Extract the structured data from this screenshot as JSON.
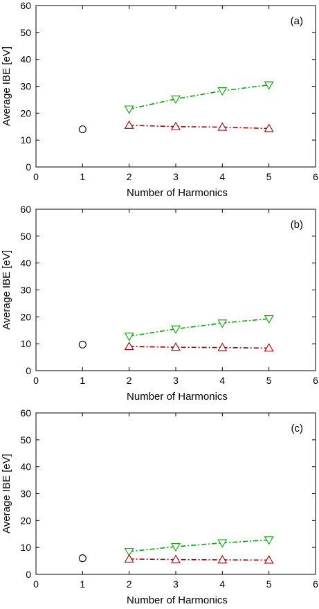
{
  "chart_data": [
    {
      "type": "scatter",
      "panel_label": "(a)",
      "xlabel": "Number of Harmonics",
      "ylabel": "Average IBE [eV]",
      "xlim": [
        0,
        6
      ],
      "ylim": [
        0,
        60
      ],
      "xticks": [
        "0",
        "1",
        "2",
        "3",
        "4",
        "5",
        "6"
      ],
      "yticks": [
        "0",
        "10",
        "20",
        "30",
        "40",
        "50",
        "60"
      ],
      "grid": false,
      "series": [
        {
          "marker": "circle",
          "color": "#000000",
          "line": "none",
          "x": [
            1
          ],
          "y": [
            14.0
          ]
        },
        {
          "marker": "triangle-down",
          "color": "#00aa00",
          "line": "dash-dot",
          "x": [
            2,
            3,
            4,
            5
          ],
          "y": [
            21.5,
            25.3,
            28.3,
            30.5
          ]
        },
        {
          "marker": "triangle-up",
          "color": "#aa0000",
          "line": "dash-dot",
          "x": [
            2,
            3,
            4,
            5
          ],
          "y": [
            15.5,
            15.0,
            14.8,
            14.3
          ]
        }
      ]
    },
    {
      "type": "scatter",
      "panel_label": "(b)",
      "xlabel": "Number of Harmonics",
      "ylabel": "Average IBE [eV]",
      "xlim": [
        0,
        6
      ],
      "ylim": [
        0,
        60
      ],
      "xticks": [
        "0",
        "1",
        "2",
        "3",
        "4",
        "5",
        "6"
      ],
      "yticks": [
        "0",
        "10",
        "20",
        "30",
        "40",
        "50",
        "60"
      ],
      "grid": false,
      "series": [
        {
          "marker": "circle",
          "color": "#000000",
          "line": "none",
          "x": [
            1
          ],
          "y": [
            9.7
          ]
        },
        {
          "marker": "triangle-down",
          "color": "#00aa00",
          "line": "dash-dot",
          "x": [
            2,
            3,
            4,
            5
          ],
          "y": [
            12.8,
            15.5,
            17.7,
            19.3
          ]
        },
        {
          "marker": "triangle-up",
          "color": "#aa0000",
          "line": "dash-dot",
          "x": [
            2,
            3,
            4,
            5
          ],
          "y": [
            9.0,
            8.7,
            8.6,
            8.4
          ]
        }
      ]
    },
    {
      "type": "scatter",
      "panel_label": "(c)",
      "xlabel": "Number of Harmonics",
      "ylabel": "Average IBE [eV]",
      "xlim": [
        0,
        6
      ],
      "ylim": [
        0,
        60
      ],
      "xticks": [
        "0",
        "1",
        "2",
        "3",
        "4",
        "5",
        "6"
      ],
      "yticks": [
        "0",
        "10",
        "20",
        "30",
        "40",
        "50",
        "60"
      ],
      "grid": false,
      "series": [
        {
          "marker": "circle",
          "color": "#000000",
          "line": "none",
          "x": [
            1
          ],
          "y": [
            6.0
          ]
        },
        {
          "marker": "triangle-down",
          "color": "#00aa00",
          "line": "dash-dot",
          "x": [
            2,
            3,
            4,
            5
          ],
          "y": [
            8.5,
            10.3,
            11.7,
            12.8
          ]
        },
        {
          "marker": "triangle-up",
          "color": "#aa0000",
          "line": "dash-dot",
          "x": [
            2,
            3,
            4,
            5
          ],
          "y": [
            5.7,
            5.5,
            5.4,
            5.3
          ]
        }
      ]
    }
  ]
}
